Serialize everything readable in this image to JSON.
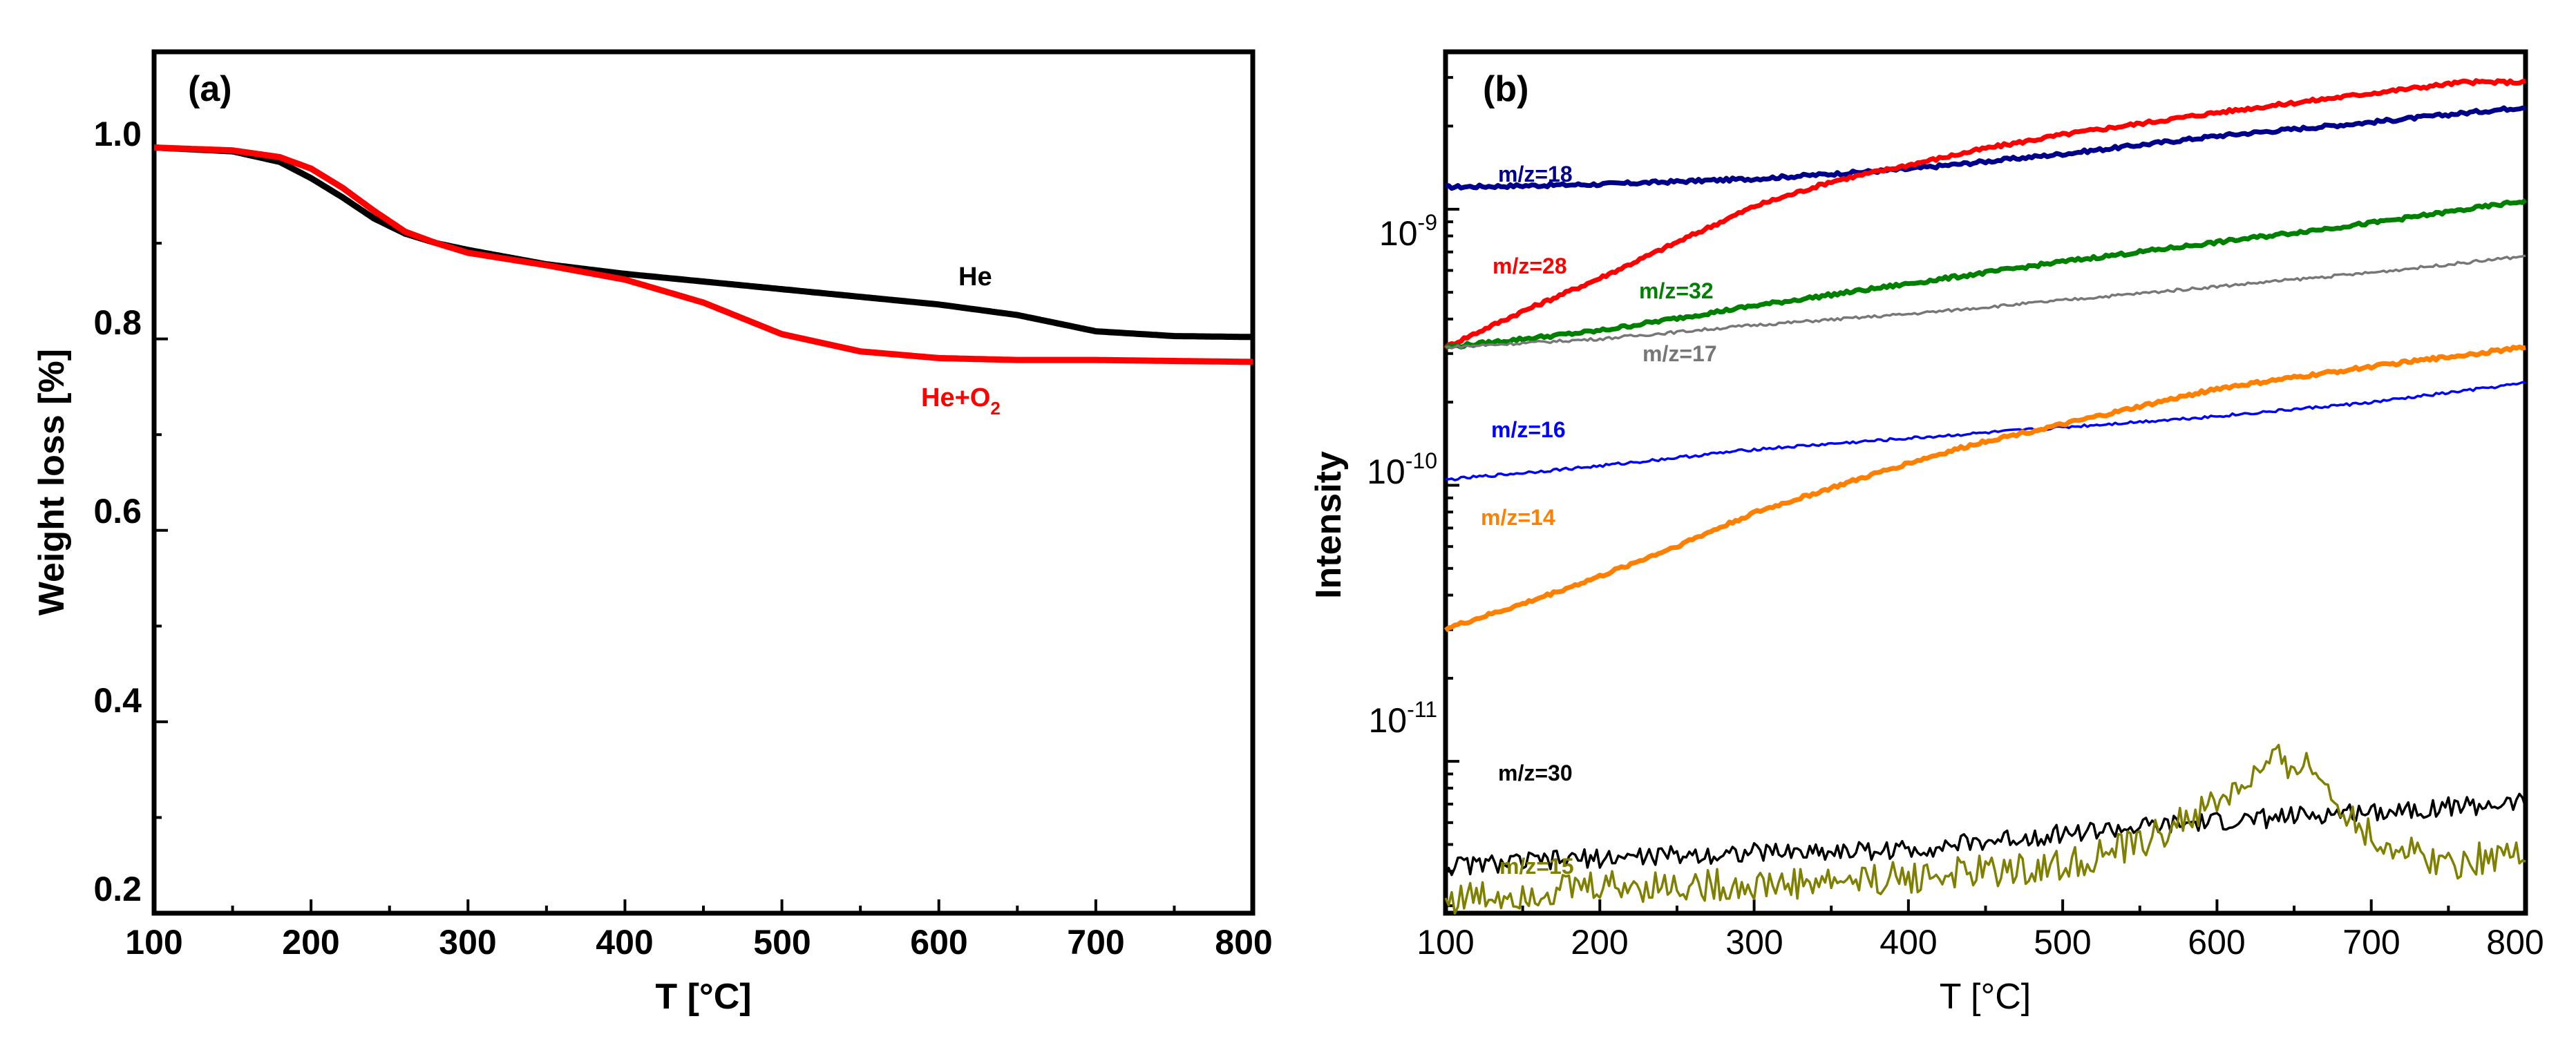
{
  "chart_data": [
    {
      "type": "line",
      "panel_label": "(a)",
      "xlabel": "T [°C]",
      "ylabel": "Weight loss [%]",
      "xlim": [
        100,
        800
      ],
      "ylim": [
        0.2,
        1.1
      ],
      "xticks": [
        "100",
        "200",
        "300",
        "400",
        "500",
        "600",
        "700",
        "800"
      ],
      "yticks": [
        "0.2",
        "0.4",
        "0.6",
        "0.8",
        "1.0"
      ],
      "series": [
        {
          "name": "He",
          "label": "He",
          "color": "#000000",
          "x": [
            100,
            150,
            180,
            200,
            220,
            240,
            260,
            280,
            300,
            350,
            400,
            450,
            500,
            550,
            600,
            650,
            700,
            750,
            800
          ],
          "y": [
            1.0,
            0.996,
            0.985,
            0.968,
            0.948,
            0.926,
            0.91,
            0.9,
            0.893,
            0.878,
            0.868,
            0.86,
            0.852,
            0.844,
            0.836,
            0.825,
            0.808,
            0.803,
            0.802
          ]
        },
        {
          "name": "He+O2",
          "label": "He+O",
          "label_sub": "2",
          "color": "#ff0000",
          "x": [
            100,
            150,
            180,
            200,
            220,
            240,
            260,
            280,
            300,
            350,
            400,
            450,
            500,
            550,
            600,
            650,
            700,
            750,
            800
          ],
          "y": [
            1.0,
            0.997,
            0.99,
            0.978,
            0.958,
            0.934,
            0.912,
            0.9,
            0.89,
            0.877,
            0.862,
            0.838,
            0.805,
            0.787,
            0.78,
            0.778,
            0.778,
            0.777,
            0.776
          ]
        }
      ]
    },
    {
      "type": "line",
      "panel_label": "(b)",
      "xlabel": "T [°C]",
      "ylabel": "Intensity",
      "yscale": "log",
      "xlim": [
        100,
        800
      ],
      "ylim_log10": [
        -11.55,
        -8.43
      ],
      "xticks": [
        "100",
        "200",
        "300",
        "400",
        "500",
        "600",
        "700",
        "800"
      ],
      "yticks": [
        {
          "base": "10",
          "exp": "-9"
        },
        {
          "base": "10",
          "exp": "-10"
        },
        {
          "base": "10",
          "exp": "-11"
        }
      ],
      "series": [
        {
          "name": "m/z=18",
          "label": "m/z=18",
          "color": "#00008b",
          "noise": 0.006,
          "x": [
            100,
            200,
            300,
            400,
            500,
            600,
            700,
            800
          ],
          "y_log10": [
            -8.92,
            -8.91,
            -8.89,
            -8.855,
            -8.8,
            -8.735,
            -8.685,
            -8.63
          ]
        },
        {
          "name": "m/z=28",
          "label": "m/z=28",
          "color": "#ff0000",
          "noise": 0.006,
          "x": [
            100,
            150,
            200,
            250,
            300,
            350,
            400,
            450,
            500,
            600,
            700,
            760,
            800
          ],
          "y_log10": [
            -9.5,
            -9.37,
            -9.25,
            -9.12,
            -8.99,
            -8.9,
            -8.84,
            -8.78,
            -8.73,
            -8.65,
            -8.58,
            -8.54,
            -8.54
          ]
        },
        {
          "name": "m/z=32",
          "label": "m/z=32",
          "color": "#008000",
          "noise": 0.006,
          "x": [
            100,
            200,
            300,
            400,
            500,
            600,
            700,
            800
          ],
          "y_log10": [
            -9.5,
            -9.44,
            -9.35,
            -9.27,
            -9.19,
            -9.12,
            -9.05,
            -8.97
          ]
        },
        {
          "name": "m/z=17",
          "label": "m/z=17",
          "color": "#777777",
          "noise": 0.005,
          "x": [
            100,
            200,
            300,
            400,
            500,
            600,
            700,
            800
          ],
          "y_log10": [
            -9.5,
            -9.47,
            -9.42,
            -9.38,
            -9.33,
            -9.28,
            -9.23,
            -9.17
          ]
        },
        {
          "name": "m/z=16",
          "label": "m/z=16",
          "color": "#0000ff",
          "noise": 0.005,
          "x": [
            100,
            200,
            300,
            400,
            500,
            600,
            700,
            800
          ],
          "y_log10": [
            -9.98,
            -9.93,
            -9.87,
            -9.83,
            -9.79,
            -9.75,
            -9.7,
            -9.63
          ]
        },
        {
          "name": "m/z=14",
          "label": "m/z=14",
          "color": "#ff8000",
          "noise": 0.006,
          "x": [
            100,
            150,
            200,
            250,
            300,
            350,
            400,
            450,
            500,
            600,
            700,
            800
          ],
          "y_log10": [
            -10.52,
            -10.43,
            -10.33,
            -10.22,
            -10.1,
            -10.01,
            -9.92,
            -9.84,
            -9.78,
            -9.65,
            -9.57,
            -9.5
          ]
        },
        {
          "name": "m/z=30",
          "label": "m/z=30",
          "color": "#000000",
          "noise": 0.035,
          "x": [
            100,
            200,
            300,
            400,
            500,
            600,
            700,
            800
          ],
          "y_log10": [
            -11.38,
            -11.35,
            -11.33,
            -11.32,
            -11.26,
            -11.22,
            -11.18,
            -11.15
          ]
        },
        {
          "name": "m/z=15",
          "label": "m/z=15",
          "color": "#808000",
          "noise": 0.06,
          "x": [
            100,
            200,
            300,
            400,
            500,
            550,
            600,
            640,
            660,
            700,
            750,
            800
          ],
          "y_log10": [
            -11.5,
            -11.45,
            -11.45,
            -11.42,
            -11.38,
            -11.3,
            -11.15,
            -11.0,
            -11.02,
            -11.28,
            -11.37,
            -11.32
          ]
        }
      ]
    }
  ]
}
